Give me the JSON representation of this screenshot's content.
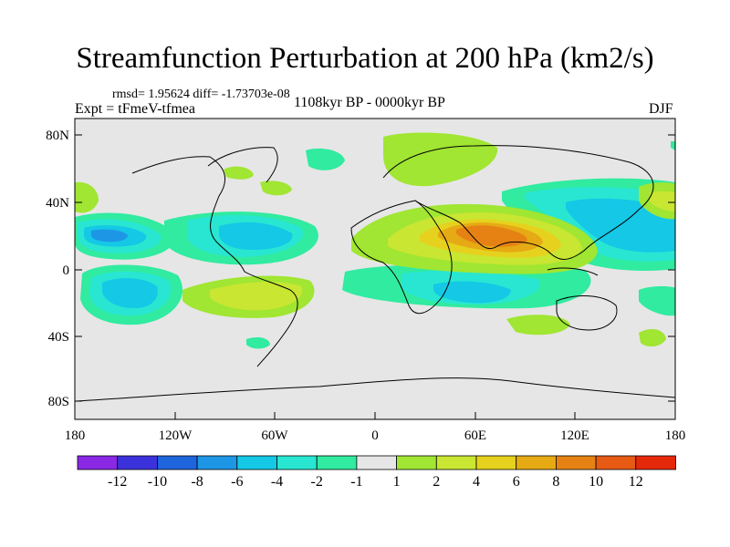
{
  "title": "Streamfunction Perturbation at 200 hPa (km2/s)",
  "stats": "rmsd= 1.95624 diff= -1.73703e-08",
  "experiment": "Expt = tFmeV-tfmea",
  "period": "1108kyr BP - 0000kyr BP",
  "season": "DJF",
  "axes": {
    "y_ticks": [
      "80N",
      "40N",
      "0",
      "40S",
      "80S"
    ],
    "x_ticks": [
      "180",
      "120W",
      "60W",
      "0",
      "60E",
      "120E",
      "180"
    ]
  },
  "colorbar": {
    "colors": [
      "#8a28e6",
      "#3c32dc",
      "#1e64dc",
      "#1e96e6",
      "#14c8e6",
      "#28e6d2",
      "#30eba0",
      "#e6e6e6",
      "#a0e632",
      "#c8e632",
      "#e6d21e",
      "#e6aa14",
      "#e68214",
      "#e65a14",
      "#e6280a"
    ],
    "labels": [
      "-12",
      "-10",
      "-8",
      "-6",
      "-4",
      "-2",
      "-1",
      "1",
      "2",
      "4",
      "6",
      "8",
      "10",
      "12"
    ]
  }
}
